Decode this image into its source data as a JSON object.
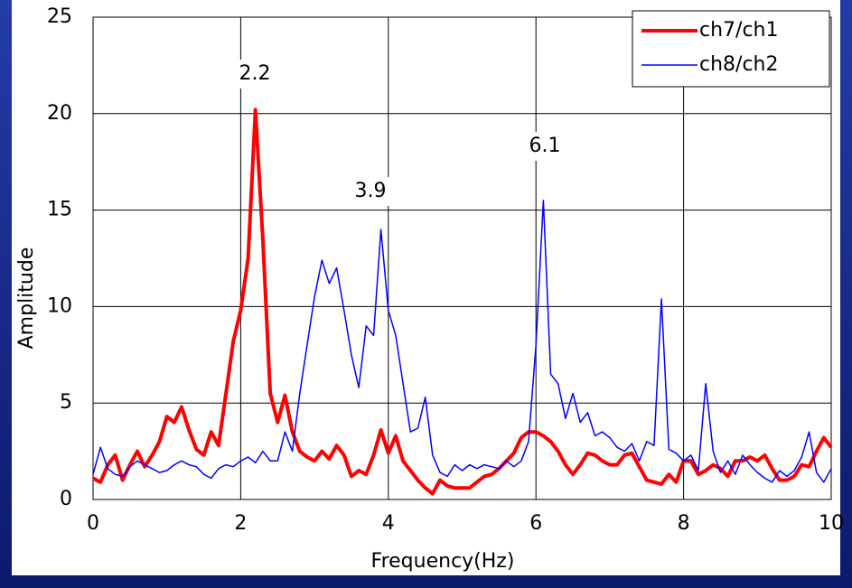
{
  "chart_data": {
    "type": "line",
    "xlabel": "Frequency(Hz)",
    "ylabel": "Amplitude",
    "x": [
      0,
      0.1,
      0.2,
      0.3,
      0.4,
      0.5,
      0.6,
      0.7,
      0.8,
      0.9,
      1,
      1.1,
      1.2,
      1.3,
      1.4,
      1.5,
      1.6,
      1.7,
      1.8,
      1.9,
      2,
      2.1,
      2.2,
      2.3,
      2.4,
      2.5,
      2.6,
      2.7,
      2.8,
      2.9,
      3,
      3.1,
      3.2,
      3.3,
      3.4,
      3.5,
      3.6,
      3.7,
      3.8,
      3.9,
      4,
      4.1,
      4.2,
      4.3,
      4.4,
      4.5,
      4.6,
      4.7,
      4.8,
      4.9,
      5,
      5.1,
      5.2,
      5.3,
      5.4,
      5.5,
      5.6,
      5.7,
      5.8,
      5.9,
      6,
      6.1,
      6.2,
      6.3,
      6.4,
      6.5,
      6.6,
      6.7,
      6.8,
      6.9,
      7,
      7.1,
      7.2,
      7.3,
      7.4,
      7.5,
      7.6,
      7.7,
      7.8,
      7.9,
      8,
      8.1,
      8.2,
      8.3,
      8.4,
      8.5,
      8.6,
      8.7,
      8.8,
      8.9,
      9,
      9.1,
      9.2,
      9.3,
      9.4,
      9.5,
      9.6,
      9.7,
      9.8,
      9.9,
      10
    ],
    "series": [
      {
        "name": "ch7/ch1",
        "color": "#ff0000",
        "values": [
          1.1,
          0.9,
          1.8,
          2.3,
          1.0,
          1.8,
          2.5,
          1.7,
          2.3,
          3.0,
          4.3,
          4.0,
          4.8,
          3.6,
          2.6,
          2.3,
          3.5,
          2.8,
          5.5,
          8.2,
          9.8,
          12.5,
          20.2,
          13.5,
          5.5,
          4.0,
          5.4,
          3.5,
          2.5,
          2.2,
          2.0,
          2.5,
          2.1,
          2.8,
          2.3,
          1.2,
          1.5,
          1.3,
          2.3,
          3.6,
          2.4,
          3.3,
          2.0,
          1.5,
          1.0,
          0.6,
          0.3,
          1.0,
          0.7,
          0.6,
          0.6,
          0.6,
          0.9,
          1.2,
          1.3,
          1.6,
          2.0,
          2.4,
          3.2,
          3.5,
          3.5,
          3.3,
          3.0,
          2.5,
          1.8,
          1.3,
          1.8,
          2.4,
          2.3,
          2.0,
          1.8,
          1.8,
          2.3,
          2.4,
          1.7,
          1.0,
          0.9,
          0.8,
          1.3,
          0.9,
          2.0,
          2.0,
          1.3,
          1.5,
          1.8,
          1.6,
          1.2,
          2.0,
          2.0,
          2.2,
          2.0,
          2.3,
          1.6,
          1.0,
          1.0,
          1.2,
          1.8,
          1.7,
          2.5,
          3.2,
          2.7
        ]
      },
      {
        "name": "ch8/ch2",
        "color": "#0000ff",
        "values": [
          1.3,
          2.7,
          1.6,
          1.3,
          1.2,
          1.7,
          2.0,
          1.8,
          1.6,
          1.4,
          1.5,
          1.8,
          2.0,
          1.8,
          1.7,
          1.3,
          1.1,
          1.6,
          1.8,
          1.7,
          2.0,
          2.2,
          1.9,
          2.5,
          2.0,
          2.0,
          3.5,
          2.5,
          5.5,
          8.0,
          10.5,
          12.4,
          11.2,
          12.0,
          9.8,
          7.5,
          5.8,
          9.0,
          8.5,
          14.0,
          9.8,
          8.5,
          6.0,
          3.5,
          3.7,
          5.3,
          2.3,
          1.4,
          1.2,
          1.8,
          1.5,
          1.8,
          1.6,
          1.8,
          1.7,
          1.6,
          2.0,
          1.7,
          2.0,
          3.0,
          8.0,
          15.5,
          6.5,
          6.0,
          4.2,
          5.5,
          4.0,
          4.5,
          3.3,
          3.5,
          3.2,
          2.7,
          2.5,
          2.9,
          2.0,
          3.0,
          2.8,
          10.4,
          2.6,
          2.4,
          2.0,
          2.3,
          1.5,
          6.0,
          2.5,
          1.4,
          2.0,
          1.3,
          2.3,
          1.8,
          1.4,
          1.1,
          0.9,
          1.5,
          1.2,
          1.5,
          2.2,
          3.5,
          1.4,
          0.9,
          1.6
        ]
      }
    ],
    "annotations": [
      "2.2",
      "3.9",
      "6.1"
    ],
    "xlim": [
      0,
      10
    ],
    "xticks": [
      0,
      2,
      4,
      6,
      8,
      10
    ],
    "ylim": [
      0,
      25
    ],
    "yticks": [
      0,
      5,
      10,
      15,
      20,
      25
    ],
    "grid": true,
    "legend": "upper right"
  }
}
